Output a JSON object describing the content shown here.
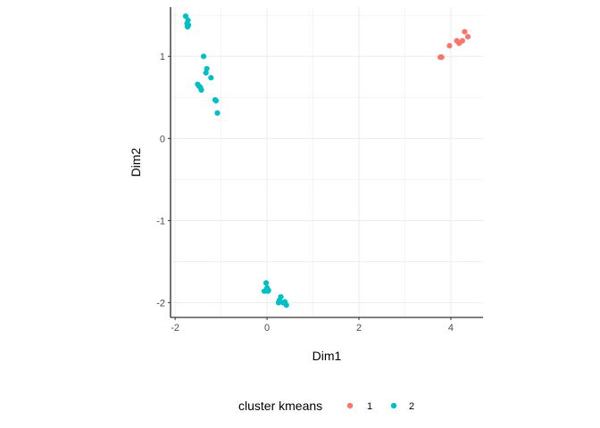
{
  "colors": {
    "cluster_1": "#F8766D",
    "cluster_2": "#00BFC4",
    "grid": "#EBEBEB",
    "axis": "#000000"
  },
  "chart_data": {
    "type": "scatter",
    "title": "",
    "xlabel": "Dim1",
    "ylabel": "Dim2",
    "xlim": [
      -2.1,
      4.7
    ],
    "ylim": [
      -2.18,
      1.6
    ],
    "x_ticks": [
      -2,
      0,
      2,
      4
    ],
    "y_ticks": [
      -2,
      -1,
      0,
      1
    ],
    "x_tick_labels": [
      "-2",
      "0",
      "2",
      "4"
    ],
    "y_tick_labels": [
      "-2",
      "-1",
      "0",
      "1"
    ],
    "grid": true,
    "legend": {
      "title": "cluster kmeans",
      "position": "bottom",
      "entries": [
        "1",
        "2"
      ]
    },
    "series": [
      {
        "name": "1",
        "color": "#F8766D",
        "points": [
          [
            3.77,
            0.99
          ],
          [
            3.8,
            0.99
          ],
          [
            3.97,
            1.13
          ],
          [
            4.13,
            1.19
          ],
          [
            4.18,
            1.16
          ],
          [
            4.25,
            1.19
          ],
          [
            4.3,
            1.3
          ],
          [
            4.37,
            1.24
          ]
        ]
      },
      {
        "name": "2",
        "color": "#00BFC4",
        "points": [
          [
            -1.77,
            1.49
          ],
          [
            -1.72,
            1.44
          ],
          [
            -1.74,
            1.4
          ],
          [
            -1.73,
            1.36
          ],
          [
            -1.71,
            1.38
          ],
          [
            -1.38,
            1.0
          ],
          [
            -1.31,
            0.85
          ],
          [
            -1.33,
            0.8
          ],
          [
            -1.22,
            0.74
          ],
          [
            -1.51,
            0.66
          ],
          [
            -1.48,
            0.64
          ],
          [
            -1.45,
            0.62
          ],
          [
            -1.43,
            0.59
          ],
          [
            -1.13,
            0.47
          ],
          [
            -1.11,
            0.46
          ],
          [
            -1.08,
            0.31
          ],
          [
            -0.02,
            -1.76
          ],
          [
            0.0,
            -1.82
          ],
          [
            -0.06,
            -1.86
          ],
          [
            0.02,
            -1.86
          ],
          [
            0.03,
            -1.85
          ],
          [
            0.3,
            -1.93
          ],
          [
            0.27,
            -1.97
          ],
          [
            0.25,
            -2.0
          ],
          [
            0.35,
            -2.0
          ],
          [
            0.42,
            -2.03
          ],
          [
            0.39,
            -1.99
          ]
        ]
      }
    ]
  }
}
